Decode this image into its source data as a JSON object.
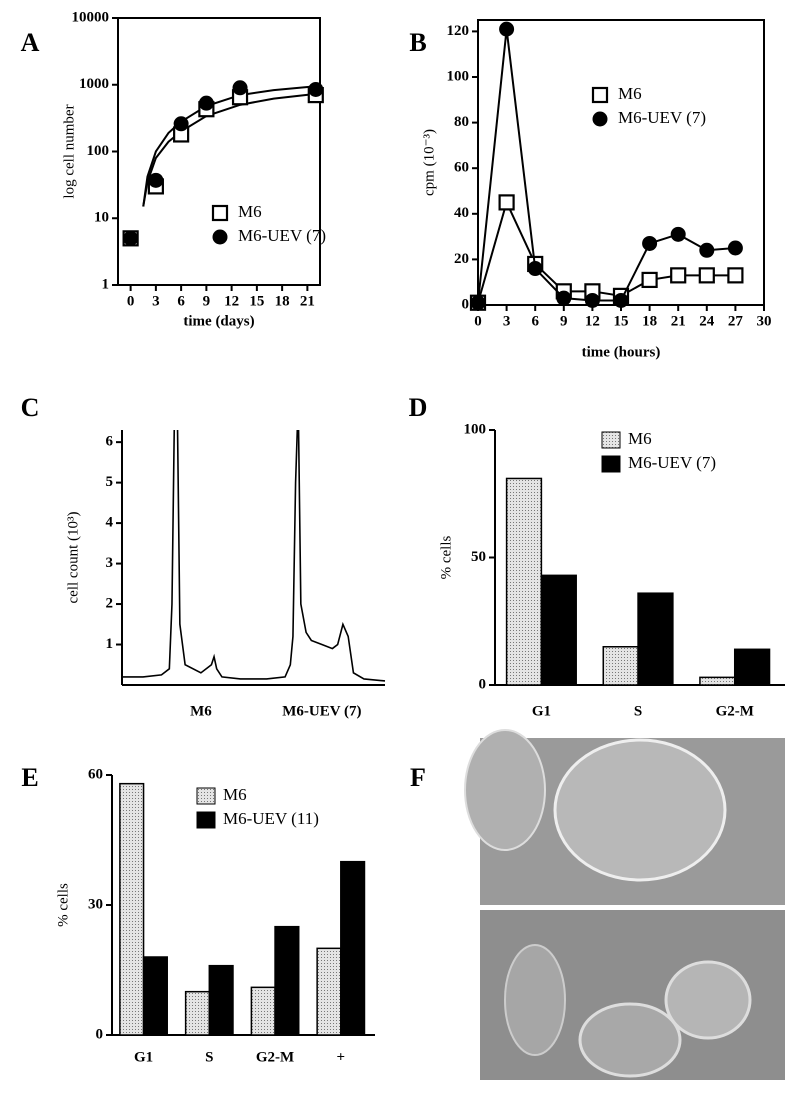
{
  "chart_data": [
    {
      "type": "scatter",
      "panel": "A",
      "x_label": "time (days)",
      "y_label": "log cell number",
      "log_y": true,
      "xlim": [
        -1.5,
        22.5
      ],
      "xticks": [
        0,
        3,
        6,
        9,
        12,
        15,
        18,
        21
      ],
      "ylim": [
        1,
        10000
      ],
      "yticks": [
        1,
        10,
        100,
        1000,
        10000
      ],
      "x": [
        0,
        3,
        6,
        9,
        13,
        22
      ],
      "series": [
        {
          "name": "M6",
          "color": "#000000",
          "marker": "square-open",
          "values": [
            5,
            30,
            180,
            430,
            650,
            700
          ]
        },
        {
          "name": "M6-UEV (7)",
          "color": "#000000",
          "marker": "circle",
          "values": [
            5,
            37,
            260,
            530,
            900,
            850
          ]
        }
      ],
      "curves": [
        {
          "x": [
            1.5,
            2,
            3,
            4.5,
            6,
            9,
            13,
            17,
            22
          ],
          "values": [
            15,
            35,
            80,
            140,
            200,
            340,
            500,
            620,
            730
          ]
        },
        {
          "x": [
            1.5,
            2,
            3,
            4.5,
            6,
            9,
            13,
            17,
            22
          ],
          "values": [
            15,
            42,
            100,
            190,
            280,
            480,
            700,
            830,
            950
          ]
        }
      ]
    },
    {
      "type": "line",
      "panel": "B",
      "x_label": "time (hours)",
      "y_label": "cpm (10⁻³)",
      "xlim": [
        0,
        30
      ],
      "xticks": [
        0,
        3,
        6,
        9,
        12,
        15,
        18,
        21,
        24,
        27,
        30
      ],
      "ylim": [
        0,
        125
      ],
      "yticks": [
        0,
        20,
        40,
        60,
        80,
        100,
        120
      ],
      "x": [
        0,
        3,
        6,
        9,
        12,
        15,
        18,
        21,
        24,
        27
      ],
      "series": [
        {
          "name": "M6",
          "color": "#000000",
          "marker": "square-open",
          "values": [
            1,
            45,
            18,
            6,
            6,
            4,
            11,
            13,
            13,
            13
          ]
        },
        {
          "name": "M6-UEV (7)",
          "color": "#000000",
          "marker": "circle",
          "values": [
            1,
            121,
            16,
            3,
            2,
            2,
            27,
            31,
            24,
            25
          ]
        }
      ]
    },
    {
      "type": "trace",
      "panel": "C",
      "y_label": "cell count (10³)",
      "categories": [
        "M6",
        "M6-UEV (7)"
      ],
      "xlim": [
        0,
        100
      ],
      "ylim": [
        0,
        6.3
      ],
      "yticks": [
        1,
        2,
        3,
        4,
        5,
        6
      ],
      "x": [
        0,
        8,
        15,
        18,
        19,
        20,
        21,
        22,
        24,
        30,
        34,
        35,
        36,
        38,
        45,
        55,
        62,
        64,
        65,
        66,
        67,
        68,
        70,
        72,
        76,
        80,
        82,
        84,
        86,
        88,
        92,
        100
      ],
      "values": [
        0.2,
        0.2,
        0.25,
        0.4,
        2,
        7,
        7,
        1.5,
        0.5,
        0.3,
        0.5,
        0.7,
        0.4,
        0.2,
        0.15,
        0.15,
        0.2,
        0.5,
        1.2,
        5,
        7,
        2,
        1.3,
        1.1,
        1,
        0.9,
        1,
        1.5,
        1.2,
        0.3,
        0.15,
        0.1
      ],
      "color": "#000000"
    },
    {
      "type": "bar",
      "panel": "D",
      "y_label": "% cells",
      "categories": [
        "G1",
        "S",
        "G2-M"
      ],
      "ylim": [
        0,
        100
      ],
      "yticks": [
        0,
        50,
        100
      ],
      "series": [
        {
          "name": "M6",
          "color": "#d4d4d4",
          "values": [
            81,
            15,
            3
          ]
        },
        {
          "name": "M6-UEV (7)",
          "color": "#000000",
          "values": [
            43,
            36,
            14
          ]
        }
      ]
    },
    {
      "type": "bar",
      "panel": "E",
      "y_label": "% cells",
      "categories": [
        "G1",
        "S",
        "G2-M",
        "+"
      ],
      "ylim": [
        0,
        60
      ],
      "yticks": [
        0,
        30,
        60
      ],
      "series": [
        {
          "name": "M6",
          "color": "#d4d4d4",
          "values": [
            58,
            10,
            11,
            20
          ]
        },
        {
          "name": "M6-UEV (11)",
          "color": "#000000",
          "values": [
            18,
            16,
            25,
            40
          ]
        }
      ]
    },
    {
      "type": "image",
      "panel": "F"
    }
  ]
}
